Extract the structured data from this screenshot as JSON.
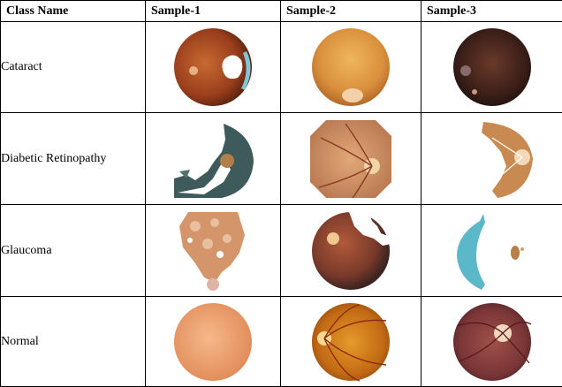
{
  "header": {
    "class_name": "Class Name",
    "sample_1": "Sample-1",
    "sample_2": "Sample-2",
    "sample_3": "Sample-3"
  },
  "rows": [
    {
      "label": "Cataract"
    },
    {
      "label": "Diabetic Retinopathy"
    },
    {
      "label": "Glaucoma"
    },
    {
      "label": "Normal"
    }
  ]
}
